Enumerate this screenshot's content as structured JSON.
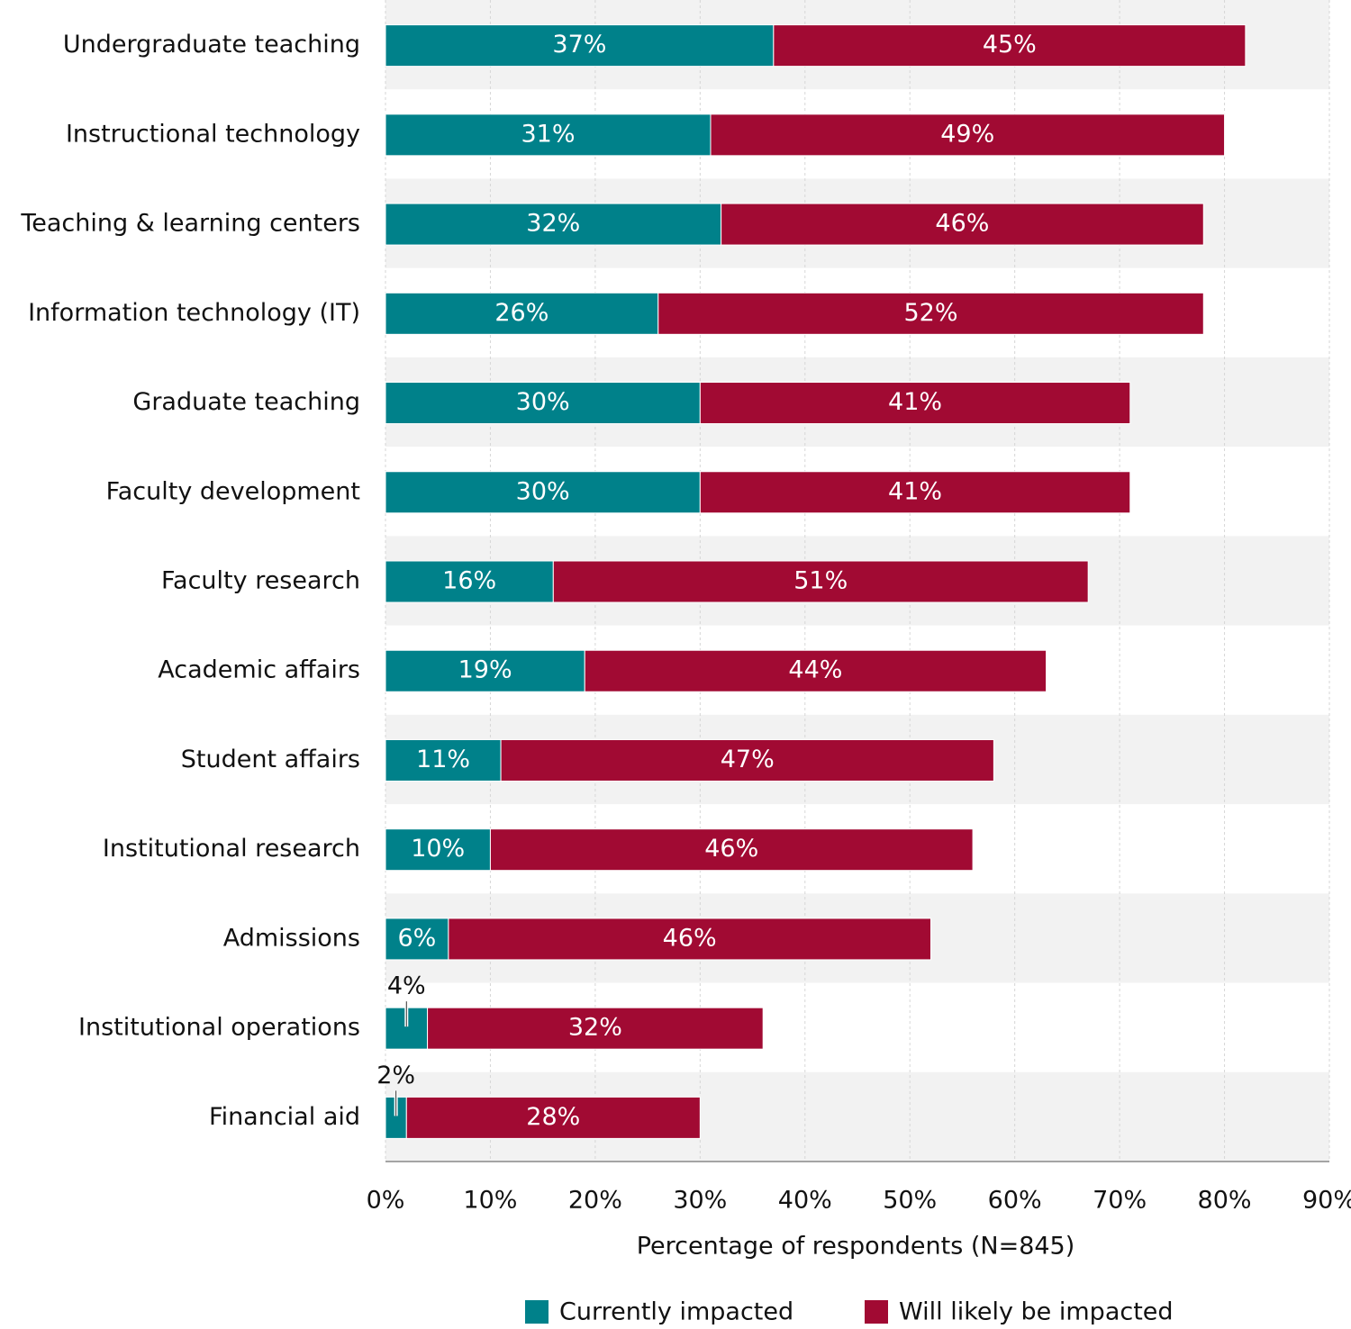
{
  "chart_data": {
    "type": "stacked-bar-horizontal",
    "categories": [
      "Undergraduate teaching",
      "Instructional technology",
      "Teaching & learning centers",
      "Information technology (IT)",
      "Graduate teaching",
      "Faculty development",
      "Faculty research",
      "Academic affairs",
      "Student affairs",
      "Institutional research",
      "Admissions",
      "Institutional operations",
      "Financial aid"
    ],
    "series": [
      {
        "name": "Currently impacted",
        "color": "#00818a",
        "values": [
          37,
          31,
          32,
          26,
          30,
          30,
          16,
          19,
          11,
          10,
          6,
          4,
          2
        ],
        "value_labels": [
          "37%",
          "31%",
          "32%",
          "26%",
          "30%",
          "30%",
          "16%",
          "19%",
          "11%",
          "10%",
          "6%",
          "4%",
          "2%"
        ]
      },
      {
        "name": "Will likely be impacted",
        "color": "#a10a33",
        "values": [
          45,
          49,
          46,
          52,
          41,
          41,
          51,
          44,
          47,
          46,
          46,
          32,
          28
        ],
        "value_labels": [
          "45%",
          "49%",
          "46%",
          "52%",
          "41%",
          "41%",
          "51%",
          "44%",
          "47%",
          "46%",
          "46%",
          "32%",
          "28%"
        ]
      }
    ],
    "xlim": [
      0,
      90
    ],
    "xticks": [
      {
        "value": 0,
        "label": "0%"
      },
      {
        "value": 10,
        "label": "10%"
      },
      {
        "value": 20,
        "label": "20%"
      },
      {
        "value": 30,
        "label": "30%"
      },
      {
        "value": 40,
        "label": "40%"
      },
      {
        "value": 50,
        "label": "50%"
      },
      {
        "value": 60,
        "label": "60%"
      },
      {
        "value": 70,
        "label": "70%"
      },
      {
        "value": 80,
        "label": "80%"
      },
      {
        "value": 90,
        "label": "90%"
      }
    ],
    "xlabel": "Percentage of respondents (N=845)",
    "grid": true,
    "legend": "bottom"
  }
}
